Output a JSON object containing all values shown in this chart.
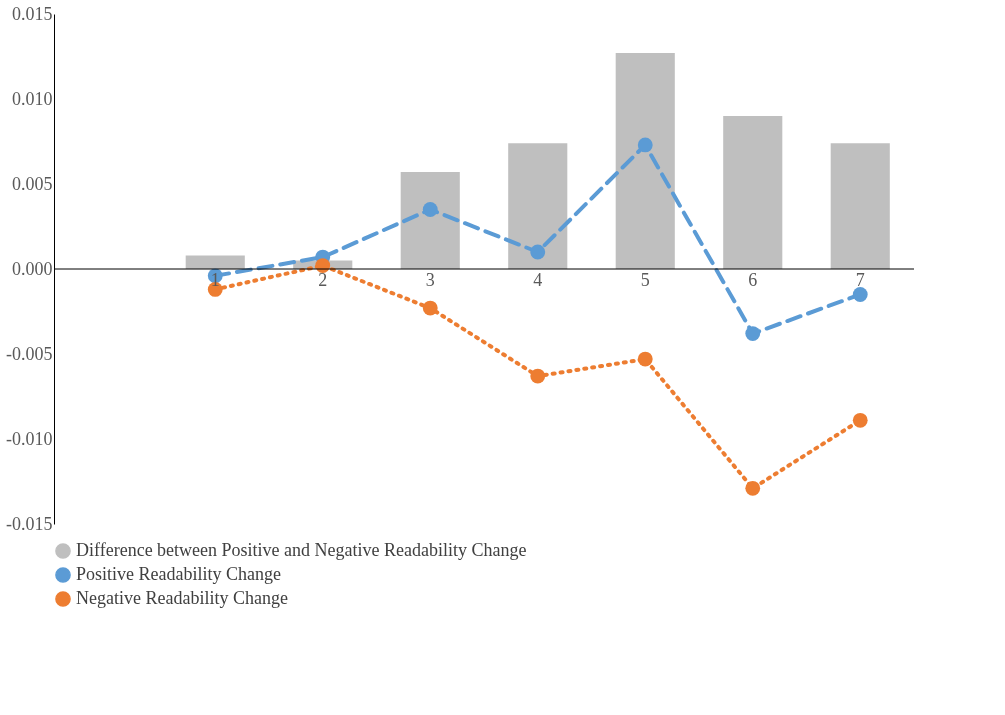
{
  "chart_data": {
    "type": "bar",
    "categories": [
      null,
      "1",
      "2",
      "3",
      "4",
      "5",
      "6",
      "7"
    ],
    "series": [
      {
        "name": "Difference between Positive and Negative Readability Change",
        "color": "#bfbfbf",
        "values": [
          null,
          0.0008,
          0.0005,
          0.0057,
          0.0074,
          0.0127,
          0.009,
          0.0074
        ]
      },
      {
        "name": "Positive Readability Change",
        "type": "line",
        "color": "#5b9bd5",
        "line_style": "dashed",
        "values": [
          null,
          -0.0004,
          0.0007,
          0.0035,
          0.001,
          0.0073,
          -0.0038,
          -0.0015
        ]
      },
      {
        "name": "Negative Readability Change",
        "type": "line",
        "color": "#ed7d31",
        "line_style": "dotted",
        "values": [
          null,
          -0.0012,
          0.0002,
          -0.0023,
          -0.0063,
          -0.0053,
          -0.0129,
          -0.0089
        ]
      }
    ],
    "ylim": [
      -0.015,
      0.015
    ],
    "yticks": [
      {
        "value": -0.015,
        "label": "-0.015"
      },
      {
        "value": -0.01,
        "label": "-0.010"
      },
      {
        "value": -0.005,
        "label": "-0.005"
      },
      {
        "value": 0,
        "label": "0.000"
      },
      {
        "value": 0.005,
        "label": "0.005"
      },
      {
        "value": 0.01,
        "label": "0.010"
      },
      {
        "value": 0.015,
        "label": "0.015"
      }
    ],
    "marker": "circle",
    "grid": false,
    "legend": "bottom"
  }
}
